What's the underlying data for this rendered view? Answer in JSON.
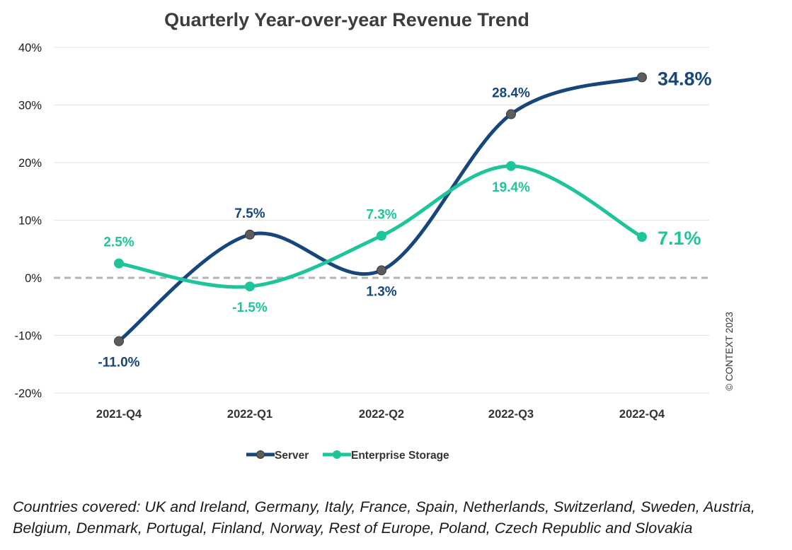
{
  "chart_data": {
    "type": "line",
    "title": "Quarterly Year-over-year Revenue Trend",
    "categories": [
      "2021-Q4",
      "2022-Q1",
      "2022-Q2",
      "2022-Q3",
      "2022-Q4"
    ],
    "series": [
      {
        "name": "Server",
        "values": [
          -11.0,
          7.5,
          1.3,
          28.4,
          34.8
        ],
        "labels": [
          "-11.0%",
          "7.5%",
          "1.3%",
          "28.4%",
          "34.8%"
        ],
        "color": "#17467a",
        "marker_color": "#5c5c5c"
      },
      {
        "name": "Enterprise Storage",
        "values": [
          2.5,
          -1.5,
          7.3,
          19.4,
          7.1
        ],
        "labels": [
          "2.5%",
          "-1.5%",
          "7.3%",
          "19.4%",
          "7.1%"
        ],
        "color": "#1fc59a",
        "marker_color": "#1fc59a"
      }
    ],
    "ylim": [
      -20,
      40
    ],
    "yticks": [
      -20,
      -10,
      0,
      10,
      20,
      30,
      40
    ],
    "ytick_labels": [
      "-20%",
      "-10%",
      "0%",
      "10%",
      "20%",
      "30%",
      "40%"
    ],
    "zero_line": "dashed",
    "grid": true,
    "legend_position": "bottom",
    "xlabel": "",
    "ylabel": ""
  },
  "copyright": "© CONTEXT 2023",
  "footnote": [
    "Countries covered: UK and Ireland, Germany, Italy, France, Spain, Netherlands, Switzerland, Sweden, Austria,",
    "Belgium, Denmark, Portugal, Finland, Norway, Rest of Europe, Poland, Czech Republic and Slovakia"
  ]
}
